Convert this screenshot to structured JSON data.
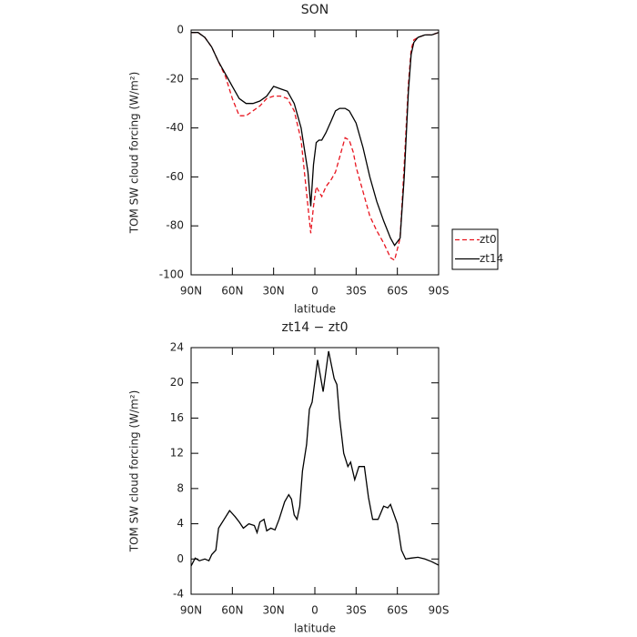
{
  "chart_data": [
    {
      "type": "line",
      "title": "SON",
      "xlabel": "latitude",
      "ylabel": "TOM SW cloud forcing (W/m²)",
      "x": [
        90,
        85,
        80,
        75,
        70,
        65,
        60,
        55,
        50,
        45,
        40,
        35,
        30,
        25,
        20,
        15,
        10,
        5,
        3,
        1,
        -1,
        -3,
        -5,
        -8,
        -12,
        -15,
        -18,
        -22,
        -25,
        -28,
        -30,
        -35,
        -40,
        -45,
        -50,
        -55,
        -58,
        -62,
        -65,
        -68,
        -70,
        -72,
        -75,
        -80,
        -85,
        -90
      ],
      "series": [
        {
          "name": "zt0",
          "color": "#e8141e",
          "dash": true,
          "values": [
            -1,
            -1,
            -3,
            -7,
            -13,
            -19,
            -28,
            -35,
            -35,
            -33,
            -31,
            -28,
            -27,
            -27,
            -28,
            -33,
            -45,
            -72,
            -83,
            -72,
            -64,
            -66,
            -68,
            -64,
            -61,
            -58,
            -52,
            -44,
            -45,
            -50,
            -56,
            -66,
            -76,
            -82,
            -87,
            -93,
            -94,
            -85,
            -55,
            -22,
            -8,
            -4,
            -3,
            -2,
            -2,
            -1
          ]
        },
        {
          "name": "zt14",
          "color": "#000000",
          "dash": false,
          "values": [
            -1,
            -1,
            -3,
            -7,
            -13,
            -18,
            -23,
            -28,
            -30,
            -30,
            -29,
            -27,
            -23,
            -24,
            -25,
            -30,
            -40,
            -58,
            -72,
            -55,
            -46,
            -45,
            -45,
            -42,
            -37,
            -33,
            -32,
            -32,
            -33,
            -36,
            -38,
            -48,
            -60,
            -70,
            -78,
            -85,
            -88,
            -85,
            -60,
            -25,
            -10,
            -5,
            -3,
            -2,
            -2,
            -1
          ]
        }
      ],
      "xlim": [
        90,
        -90
      ],
      "xticks": [
        {
          "value": 90,
          "label": "90N"
        },
        {
          "value": 60,
          "label": "60N"
        },
        {
          "value": 30,
          "label": "30N"
        },
        0,
        {
          "value": -30,
          "label": "30S"
        },
        {
          "value": -60,
          "label": "60S"
        },
        {
          "value": -90,
          "label": "90S"
        }
      ],
      "ylim": [
        -100,
        0
      ],
      "yticks": [
        -100,
        -80,
        -60,
        -40,
        -20,
        0
      ],
      "legend": "right"
    },
    {
      "type": "line",
      "title": "zt14 − zt0",
      "xlabel": "latitude",
      "ylabel": "TOM SW cloud forcing (W/m²)",
      "x": [
        90,
        87,
        84,
        80,
        77,
        75,
        72,
        70,
        66,
        62,
        58,
        55,
        52,
        48,
        44,
        42,
        40,
        37,
        35,
        32,
        29,
        26,
        22,
        19,
        17,
        15,
        13,
        11,
        9,
        6,
        4,
        2,
        -2,
        -6,
        -10,
        -14,
        -16,
        -18,
        -21,
        -24,
        -26,
        -29,
        -32,
        -36,
        -39,
        -42,
        -46,
        -50,
        -53,
        -55,
        -60,
        -63,
        -66,
        -70,
        -75,
        -80,
        -85,
        -90
      ],
      "values": [
        -0.8,
        0.1,
        -0.2,
        0,
        -0.2,
        0.5,
        1,
        3.5,
        4.5,
        5.5,
        4.8,
        4.2,
        3.5,
        4,
        3.8,
        3,
        4.2,
        4.5,
        3.2,
        3.5,
        3.3,
        4.5,
        6.5,
        7.3,
        6.8,
        5,
        4.5,
        6,
        10,
        13,
        17,
        17.8,
        22.6,
        19,
        23.6,
        20.5,
        19.8,
        16,
        12,
        10.5,
        11,
        9,
        10.5,
        10.5,
        7,
        4.5,
        4.5,
        6,
        5.8,
        6.2,
        4,
        1,
        0,
        0.1,
        0.2,
        0,
        -0.3,
        -0.7
      ],
      "color": "#000000",
      "xlim": [
        90,
        -90
      ],
      "xticks": [
        {
          "value": 90,
          "label": "90N"
        },
        {
          "value": 60,
          "label": "60N"
        },
        {
          "value": 30,
          "label": "30N"
        },
        0,
        {
          "value": -30,
          "label": "30S"
        },
        {
          "value": -60,
          "label": "60S"
        },
        {
          "value": -90,
          "label": "90S"
        }
      ],
      "ylim": [
        -4,
        24
      ],
      "yticks": [
        -4,
        0,
        4,
        8,
        12,
        16,
        20,
        24
      ]
    }
  ]
}
